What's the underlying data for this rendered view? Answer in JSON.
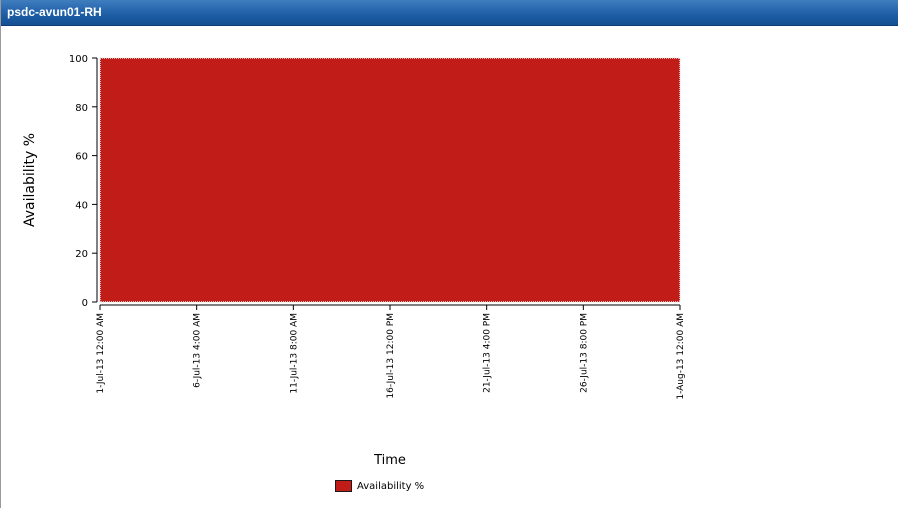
{
  "window": {
    "title": "psdc-avun01-RH"
  },
  "colors": {
    "series": "#c21c18",
    "titlebar": "#1f5fa6"
  },
  "chart_data": {
    "type": "area",
    "xlabel": "Time",
    "ylabel": "Availability %",
    "ylim": [
      0,
      100
    ],
    "yticks": [
      0,
      20,
      40,
      60,
      80,
      100
    ],
    "x_tick_labels": [
      "1-Jul-13 12:00 AM",
      "6-Jul-13 4:00 AM",
      "11-Jul-13 8:00 AM",
      "16-Jul-13 12:00 PM",
      "21-Jul-13 4:00 PM",
      "26-Jul-13 8:00 PM",
      "1-Aug-13 12:00 AM"
    ],
    "series": [
      {
        "name": "Availability %",
        "x": [
          "1-Jul-13 12:00 AM",
          "1-Aug-13 12:00 AM"
        ],
        "values": [
          100,
          100
        ]
      }
    ],
    "legend": "bottom-center",
    "grid": false
  }
}
